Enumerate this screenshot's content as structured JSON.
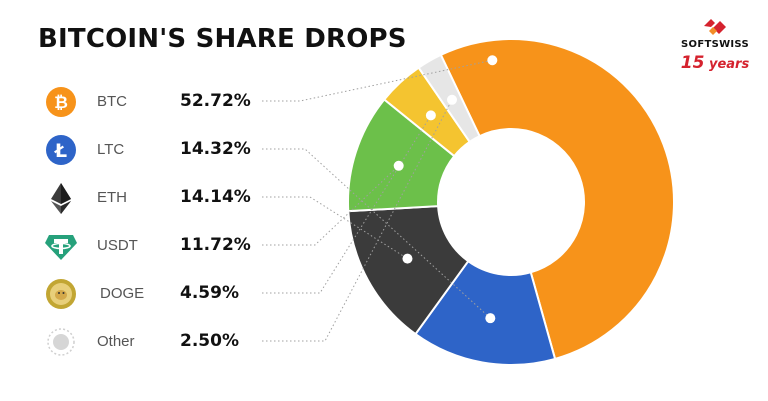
{
  "title": "BITCOIN'S SHARE DROPS",
  "brand": {
    "name": "SOFTSWISS",
    "years_number": "15",
    "years_word": "years"
  },
  "chart_data": {
    "type": "pie",
    "donut": true,
    "title": "BITCOIN'S SHARE DROPS",
    "legend_position": "left",
    "slices": [
      {
        "label": "BTC",
        "value": 52.72,
        "display": "52.72%",
        "color": "#f7931a",
        "icon": "bitcoin-icon"
      },
      {
        "label": "LTC",
        "value": 14.32,
        "display": "14.32%",
        "color": "#2e64c8",
        "icon": "litecoin-icon"
      },
      {
        "label": "ETH",
        "value": 14.14,
        "display": "14.14%",
        "color": "#3b3b3b",
        "icon": "ethereum-icon"
      },
      {
        "label": "USDT",
        "value": 11.72,
        "display": "11.72%",
        "color": "#6cc04a",
        "icon": "tether-icon"
      },
      {
        "label": "DOGE",
        "value": 4.59,
        "display": "4.59%",
        "color": "#f4c430",
        "icon": "dogecoin-icon"
      },
      {
        "label": "Other",
        "value": 2.5,
        "display": "2.50%",
        "color": "#e6e6e6",
        "icon": "other-dot-icon"
      }
    ]
  }
}
